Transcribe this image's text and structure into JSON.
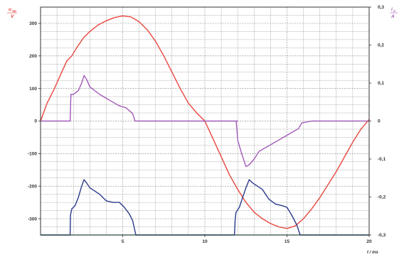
{
  "chart_data": {
    "type": "line",
    "x_label": "t / ms",
    "x_range": [
      0,
      20
    ],
    "x_ticks": [
      5,
      10,
      15,
      20
    ],
    "y_left_label": {
      "num": "u",
      "num_sub": "Sp",
      "den": "V"
    },
    "y_right_label": {
      "num": "i",
      "num_sub": "C",
      "den": "A"
    },
    "y_left_range": [
      -350,
      350
    ],
    "y_right_range": [
      -0.3,
      0.3
    ],
    "y_left_ticks": [
      -300,
      -200,
      -100,
      0,
      100,
      200,
      300
    ],
    "y_right_ticks": [
      "-0,3",
      "-0,2",
      "-0,1",
      "0",
      "0,1",
      "0,2",
      "0,3"
    ],
    "y_right_tick_values": [
      -0.3,
      -0.2,
      -0.1,
      0,
      0.1,
      0.2,
      0.3
    ],
    "grid": true,
    "colors": {
      "red": "#e8473f",
      "purple": "#a35bb8",
      "blue": "#2b3a8c",
      "green": "#1f9b6a",
      "grid": "#9a9a9a",
      "left_label": "#e8473f",
      "right_label": "#a35bb8"
    },
    "series": [
      {
        "axis": "left",
        "color_key": "red",
        "x": [
          0,
          0.4,
          0.8,
          1.2,
          1.6,
          1.9,
          2.2,
          2.6,
          3.0,
          3.5,
          4.0,
          4.5,
          5.0,
          5.5,
          6.0,
          6.5,
          7.0,
          7.5,
          8.0,
          8.5,
          9.0,
          9.5,
          10.0,
          10.5,
          11.0,
          11.5,
          12.0,
          12.5,
          13.0,
          13.5,
          14.0,
          14.5,
          15.0,
          15.5,
          16.0,
          16.5,
          17.0,
          17.5,
          18.0,
          18.5,
          19.0,
          19.5,
          20.0
        ],
        "y": [
          0,
          55,
          95,
          140,
          185,
          200,
          225,
          255,
          275,
          295,
          308,
          318,
          323,
          320,
          305,
          280,
          245,
          200,
          150,
          100,
          55,
          25,
          0,
          -55,
          -110,
          -165,
          -210,
          -250,
          -280,
          -300,
          -315,
          -325,
          -330,
          -322,
          -300,
          -270,
          -235,
          -195,
          -155,
          -110,
          -65,
          -25,
          5
        ]
      },
      {
        "axis": "right",
        "color_key": "purple",
        "x": [
          0,
          1.8,
          1.85,
          2.0,
          2.3,
          2.5,
          2.65,
          2.8,
          3.0,
          3.3,
          3.6,
          4.0,
          4.4,
          4.8,
          5.2,
          5.6,
          5.75,
          6.0,
          8.0,
          10.0,
          12.0,
          11.9,
          11.95,
          12.0,
          12.2,
          12.5,
          12.7,
          13.0,
          13.3,
          13.7,
          14.1,
          14.5,
          14.9,
          15.3,
          15.7,
          15.9,
          16.5,
          18.0,
          20.0
        ],
        "y": [
          0,
          0,
          0.07,
          0.07,
          0.08,
          0.1,
          0.12,
          0.11,
          0.09,
          0.08,
          0.07,
          0.06,
          0.05,
          0.04,
          0.035,
          0.02,
          0,
          0,
          0,
          0,
          0,
          0,
          -0.02,
          -0.05,
          -0.08,
          -0.12,
          -0.115,
          -0.1,
          -0.08,
          -0.07,
          -0.06,
          -0.05,
          -0.04,
          -0.03,
          -0.02,
          -0.005,
          0,
          0,
          0
        ]
      },
      {
        "axis": "left",
        "color_key": "blue",
        "x": [
          0,
          1.8,
          1.82,
          1.9,
          2.1,
          2.3,
          2.5,
          2.65,
          2.8,
          3.0,
          3.3,
          3.6,
          4.0,
          4.4,
          4.8,
          5.1,
          5.4,
          5.6,
          5.8,
          6.5,
          8.0,
          10.0,
          11.5,
          11.8,
          11.85,
          11.9,
          12.1,
          12.3,
          12.5,
          12.7,
          12.9,
          13.2,
          13.5,
          13.9,
          14.3,
          14.7,
          15.0,
          15.3,
          15.6,
          15.8,
          16.5,
          18.0,
          20.0
        ],
        "y": [
          -360,
          -360,
          -290,
          -270,
          -260,
          -235,
          -200,
          -180,
          -190,
          -205,
          -215,
          -225,
          -245,
          -250,
          -250,
          -265,
          -285,
          -305,
          -350,
          -360,
          -360,
          -360,
          -360,
          -360,
          -300,
          -280,
          -265,
          -235,
          -205,
          -180,
          -190,
          -200,
          -210,
          -240,
          -255,
          -260,
          -265,
          -290,
          -320,
          -350,
          -360,
          -360,
          -360
        ]
      },
      {
        "axis": "left",
        "color_key": "green",
        "x": [
          0,
          20
        ],
        "y": [
          -360,
          -360
        ]
      }
    ]
  }
}
